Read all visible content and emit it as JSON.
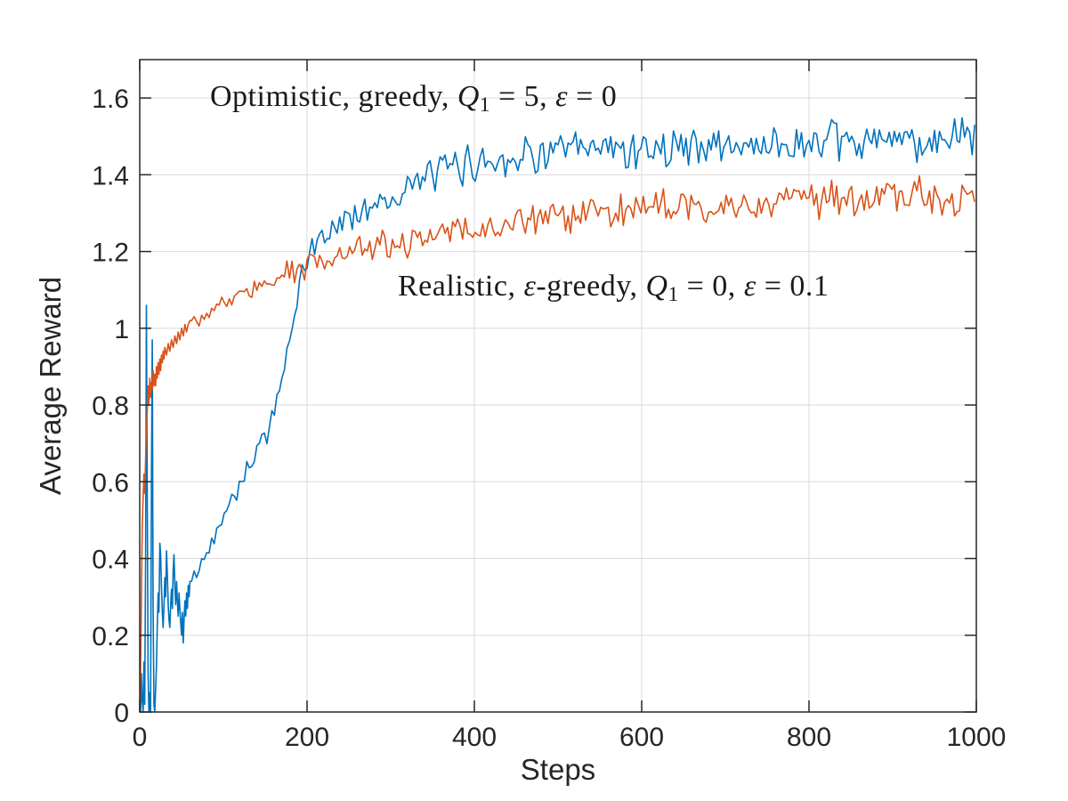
{
  "figure": {
    "background": "#ffffff"
  },
  "axis": {
    "xlabel": "Steps",
    "ylabel": "Average Reward",
    "xlim": [
      0,
      1000
    ],
    "ylim": [
      0,
      1.7
    ],
    "x_ticks": [
      0,
      200,
      400,
      600,
      800,
      1000
    ],
    "x_tick_labels": [
      "0",
      "200",
      "400",
      "600",
      "800",
      "1000"
    ],
    "y_ticks": [
      0,
      0.2,
      0.4,
      0.6,
      0.8,
      1,
      1.2,
      1.4,
      1.6
    ],
    "y_tick_labels": [
      "0",
      "0.2",
      "0.4",
      "0.6",
      "0.8",
      "1",
      "1.2",
      "1.4",
      "1.6"
    ],
    "grid": "on",
    "grid_x": [
      200,
      400,
      600,
      800
    ],
    "grid_y": [
      0.2,
      0.4,
      0.6,
      0.8,
      1.0,
      1.2,
      1.4,
      1.6
    ],
    "grid_color": "#dadada",
    "axis_color": "#262626",
    "tick_length": 13
  },
  "annotations": {
    "optimistic": {
      "prefix": "Optimistic, greedy, ",
      "var1": "Q",
      "var1_sub": "1",
      "mid": " = 5, ",
      "var2": "ε",
      "suffix": " = 0"
    },
    "realistic": {
      "prefix": "Realistic, ",
      "var1": "ε",
      "mid1": "-greedy, ",
      "var2": "Q",
      "var2_sub": "1",
      "mid2": " = 0, ",
      "var3": "ε",
      "suffix": " = 0.1"
    }
  },
  "chart_data": {
    "type": "line",
    "title": "",
    "xlabel": "Steps",
    "ylabel": "Average Reward",
    "xlim": [
      0,
      1000
    ],
    "ylim": [
      0,
      1.7
    ],
    "grid": "on",
    "legend": "in-plot text annotations (no legend box)",
    "series": [
      {
        "name": "Optimistic, greedy, Q1 = 5, eps = 0",
        "color": "#0072BD",
        "line_width": 1.6,
        "early_points": [
          [
            0,
            0.02
          ],
          [
            1,
            0
          ],
          [
            2,
            0.1
          ],
          [
            3,
            0.03
          ],
          [
            4,
            0
          ],
          [
            5,
            0.13
          ],
          [
            6,
            0.02
          ],
          [
            7,
            0.4
          ],
          [
            8,
            1.06
          ],
          [
            9,
            0.55
          ],
          [
            10,
            0.1
          ],
          [
            11,
            0
          ],
          [
            12,
            0.05
          ],
          [
            13,
            0
          ],
          [
            14,
            0.62
          ],
          [
            15,
            0.97
          ],
          [
            16,
            0.28
          ],
          [
            17,
            0.02
          ],
          [
            18,
            0
          ],
          [
            19,
            0.06
          ],
          [
            20,
            0.12
          ],
          [
            21,
            0.22
          ],
          [
            22,
            0.31
          ],
          [
            23,
            0.26
          ],
          [
            24,
            0.44
          ],
          [
            25,
            0.41
          ],
          [
            26,
            0.33
          ],
          [
            27,
            0.26
          ],
          [
            28,
            0.22
          ],
          [
            29,
            0.28
          ],
          [
            30,
            0.35
          ],
          [
            31,
            0.3
          ],
          [
            32,
            0.42
          ],
          [
            33,
            0.36
          ],
          [
            34,
            0.28
          ],
          [
            35,
            0.24
          ],
          [
            36,
            0.22
          ],
          [
            37,
            0.28
          ],
          [
            38,
            0.32
          ],
          [
            39,
            0.27
          ],
          [
            40,
            0.37
          ],
          [
            41,
            0.41
          ],
          [
            42,
            0.33
          ],
          [
            43,
            0.28
          ],
          [
            44,
            0.34
          ],
          [
            45,
            0.29
          ],
          [
            46,
            0.25
          ],
          [
            47,
            0.31
          ],
          [
            48,
            0.27
          ],
          [
            49,
            0.23
          ],
          [
            50,
            0.2
          ],
          [
            51,
            0.26
          ],
          [
            52,
            0.18
          ],
          [
            53,
            0.24
          ],
          [
            54,
            0.29
          ],
          [
            55,
            0.25
          ],
          [
            56,
            0.31
          ],
          [
            57,
            0.27
          ],
          [
            58,
            0.33
          ],
          [
            59,
            0.3
          ],
          [
            60,
            0.34
          ]
        ],
        "trend": [
          [
            60,
            0.33
          ],
          [
            80,
            0.41
          ],
          [
            100,
            0.52
          ],
          [
            120,
            0.6
          ],
          [
            140,
            0.68
          ],
          [
            150,
            0.72
          ],
          [
            160,
            0.78
          ],
          [
            170,
            0.86
          ],
          [
            180,
            0.98
          ],
          [
            190,
            1.09
          ],
          [
            200,
            1.18
          ],
          [
            210,
            1.22
          ],
          [
            225,
            1.25
          ],
          [
            250,
            1.29
          ],
          [
            275,
            1.32
          ],
          [
            300,
            1.34
          ],
          [
            325,
            1.37
          ],
          [
            350,
            1.4
          ],
          [
            375,
            1.42
          ],
          [
            400,
            1.43
          ],
          [
            450,
            1.45
          ],
          [
            500,
            1.46
          ],
          [
            600,
            1.47
          ],
          [
            700,
            1.475
          ],
          [
            800,
            1.48
          ],
          [
            900,
            1.487
          ],
          [
            1000,
            1.49
          ]
        ],
        "noise_amp": [
          [
            60,
            0.025
          ],
          [
            150,
            0.032
          ],
          [
            250,
            0.042
          ],
          [
            400,
            0.05
          ],
          [
            1000,
            0.055
          ]
        ],
        "seed": 42,
        "sample_every": 3,
        "procedural_from": 62
      },
      {
        "name": "Realistic, eps-greedy, Q1 = 0, eps = 0.1",
        "color": "#D95319",
        "line_width": 1.6,
        "early_points": [
          [
            0,
            0
          ],
          [
            1,
            0.1
          ],
          [
            2,
            0.3
          ],
          [
            3,
            0.48
          ],
          [
            4,
            0.56
          ],
          [
            5,
            0.62
          ],
          [
            6,
            0.57
          ],
          [
            7,
            0.66
          ],
          [
            8,
            0.73
          ],
          [
            9,
            0.79
          ],
          [
            10,
            0.85
          ],
          [
            11,
            0.8
          ],
          [
            12,
            0.87
          ],
          [
            13,
            0.82
          ],
          [
            14,
            0.86
          ],
          [
            15,
            0.84
          ],
          [
            16,
            0.89
          ],
          [
            17,
            0.85
          ],
          [
            18,
            0.88
          ],
          [
            19,
            0.85
          ],
          [
            20,
            0.9
          ],
          [
            21,
            0.87
          ],
          [
            22,
            0.91
          ],
          [
            23,
            0.88
          ],
          [
            24,
            0.92
          ],
          [
            25,
            0.89
          ],
          [
            26,
            0.93
          ],
          [
            27,
            0.91
          ],
          [
            28,
            0.94
          ],
          [
            29,
            0.92
          ],
          [
            30,
            0.95
          ],
          [
            32,
            0.93
          ],
          [
            34,
            0.96
          ],
          [
            36,
            0.94
          ],
          [
            38,
            0.97
          ],
          [
            40,
            0.95
          ],
          [
            42,
            0.98
          ],
          [
            44,
            0.96
          ],
          [
            46,
            0.99
          ],
          [
            48,
            0.97
          ],
          [
            50,
            1
          ],
          [
            52,
            0.98
          ],
          [
            54,
            1.01
          ],
          [
            56,
            0.99
          ],
          [
            58,
            1.01
          ],
          [
            60,
            1.02
          ]
        ],
        "trend": [
          [
            60,
            1.02
          ],
          [
            80,
            1.04
          ],
          [
            100,
            1.065
          ],
          [
            125,
            1.09
          ],
          [
            150,
            1.11
          ],
          [
            175,
            1.14
          ],
          [
            200,
            1.165
          ],
          [
            225,
            1.18
          ],
          [
            250,
            1.19
          ],
          [
            300,
            1.22
          ],
          [
            350,
            1.24
          ],
          [
            400,
            1.26
          ],
          [
            450,
            1.28
          ],
          [
            500,
            1.29
          ],
          [
            550,
            1.3
          ],
          [
            600,
            1.31
          ],
          [
            650,
            1.315
          ],
          [
            700,
            1.32
          ],
          [
            750,
            1.33
          ],
          [
            800,
            1.335
          ],
          [
            850,
            1.34
          ],
          [
            900,
            1.345
          ],
          [
            950,
            1.345
          ],
          [
            1000,
            1.34
          ]
        ],
        "noise_amp": [
          [
            60,
            0.022
          ],
          [
            200,
            0.035
          ],
          [
            400,
            0.045
          ],
          [
            1000,
            0.05
          ]
        ],
        "seed": 99,
        "sample_every": 3,
        "procedural_from": 62
      }
    ]
  }
}
